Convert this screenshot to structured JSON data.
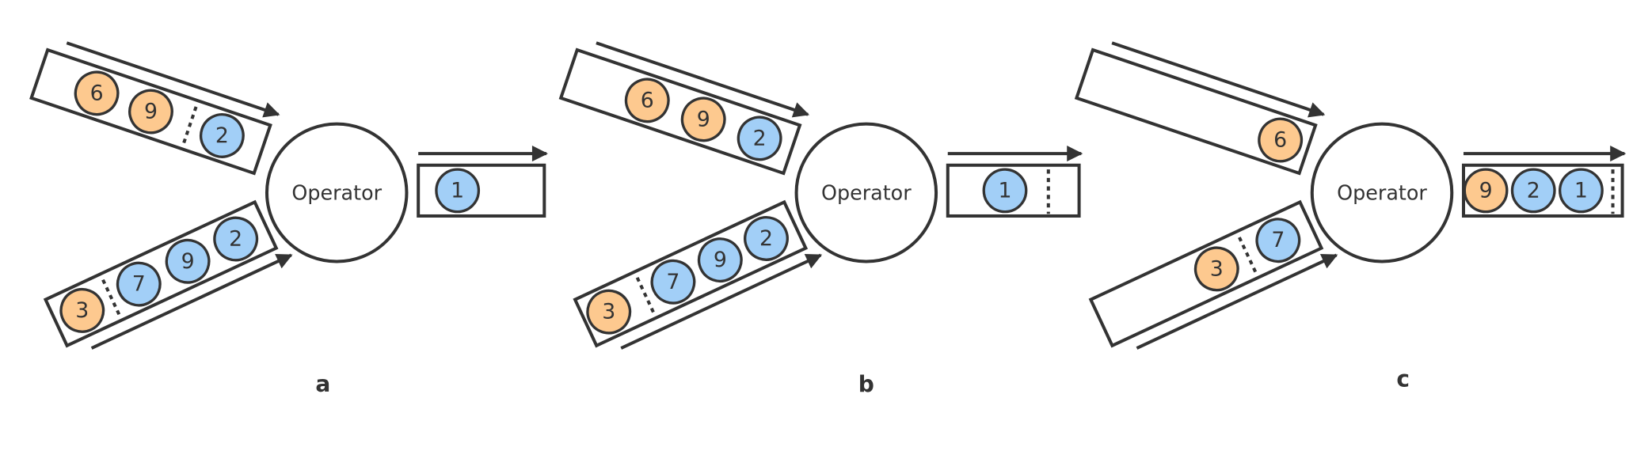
{
  "panels": [
    {
      "caption": "a",
      "operator": "Operator",
      "top_input": [
        {
          "label": "6",
          "color": "#fdc98f"
        },
        {
          "label": "9",
          "color": "#fdc98f"
        },
        {
          "label": "2",
          "color": "#a2cff7"
        }
      ],
      "bottom_input": [
        {
          "label": "3",
          "color": "#fdc98f"
        },
        {
          "label": "7",
          "color": "#a2cff7"
        },
        {
          "label": "9",
          "color": "#a2cff7"
        },
        {
          "label": "2",
          "color": "#a2cff7"
        }
      ],
      "output": [
        {
          "label": "1",
          "color": "#a2cff7"
        }
      ]
    },
    {
      "caption": "b",
      "operator": "Operator",
      "top_input": [
        {
          "label": "6",
          "color": "#fdc98f"
        },
        {
          "label": "9",
          "color": "#fdc98f"
        },
        {
          "label": "2",
          "color": "#a2cff7"
        }
      ],
      "bottom_input": [
        {
          "label": "3",
          "color": "#fdc98f"
        },
        {
          "label": "7",
          "color": "#a2cff7"
        },
        {
          "label": "9",
          "color": "#a2cff7"
        },
        {
          "label": "2",
          "color": "#a2cff7"
        }
      ],
      "output": [
        {
          "label": "1",
          "color": "#a2cff7"
        }
      ]
    },
    {
      "caption": "c",
      "operator": "Operator",
      "top_input": [
        {
          "label": "6",
          "color": "#fdc98f"
        }
      ],
      "bottom_input": [
        {
          "label": "3",
          "color": "#fdc98f"
        },
        {
          "label": "7",
          "color": "#a2cff7"
        }
      ],
      "output": [
        {
          "label": "9",
          "color": "#fdc98f"
        },
        {
          "label": "2",
          "color": "#a2cff7"
        },
        {
          "label": "1",
          "color": "#a2cff7"
        }
      ]
    }
  ]
}
